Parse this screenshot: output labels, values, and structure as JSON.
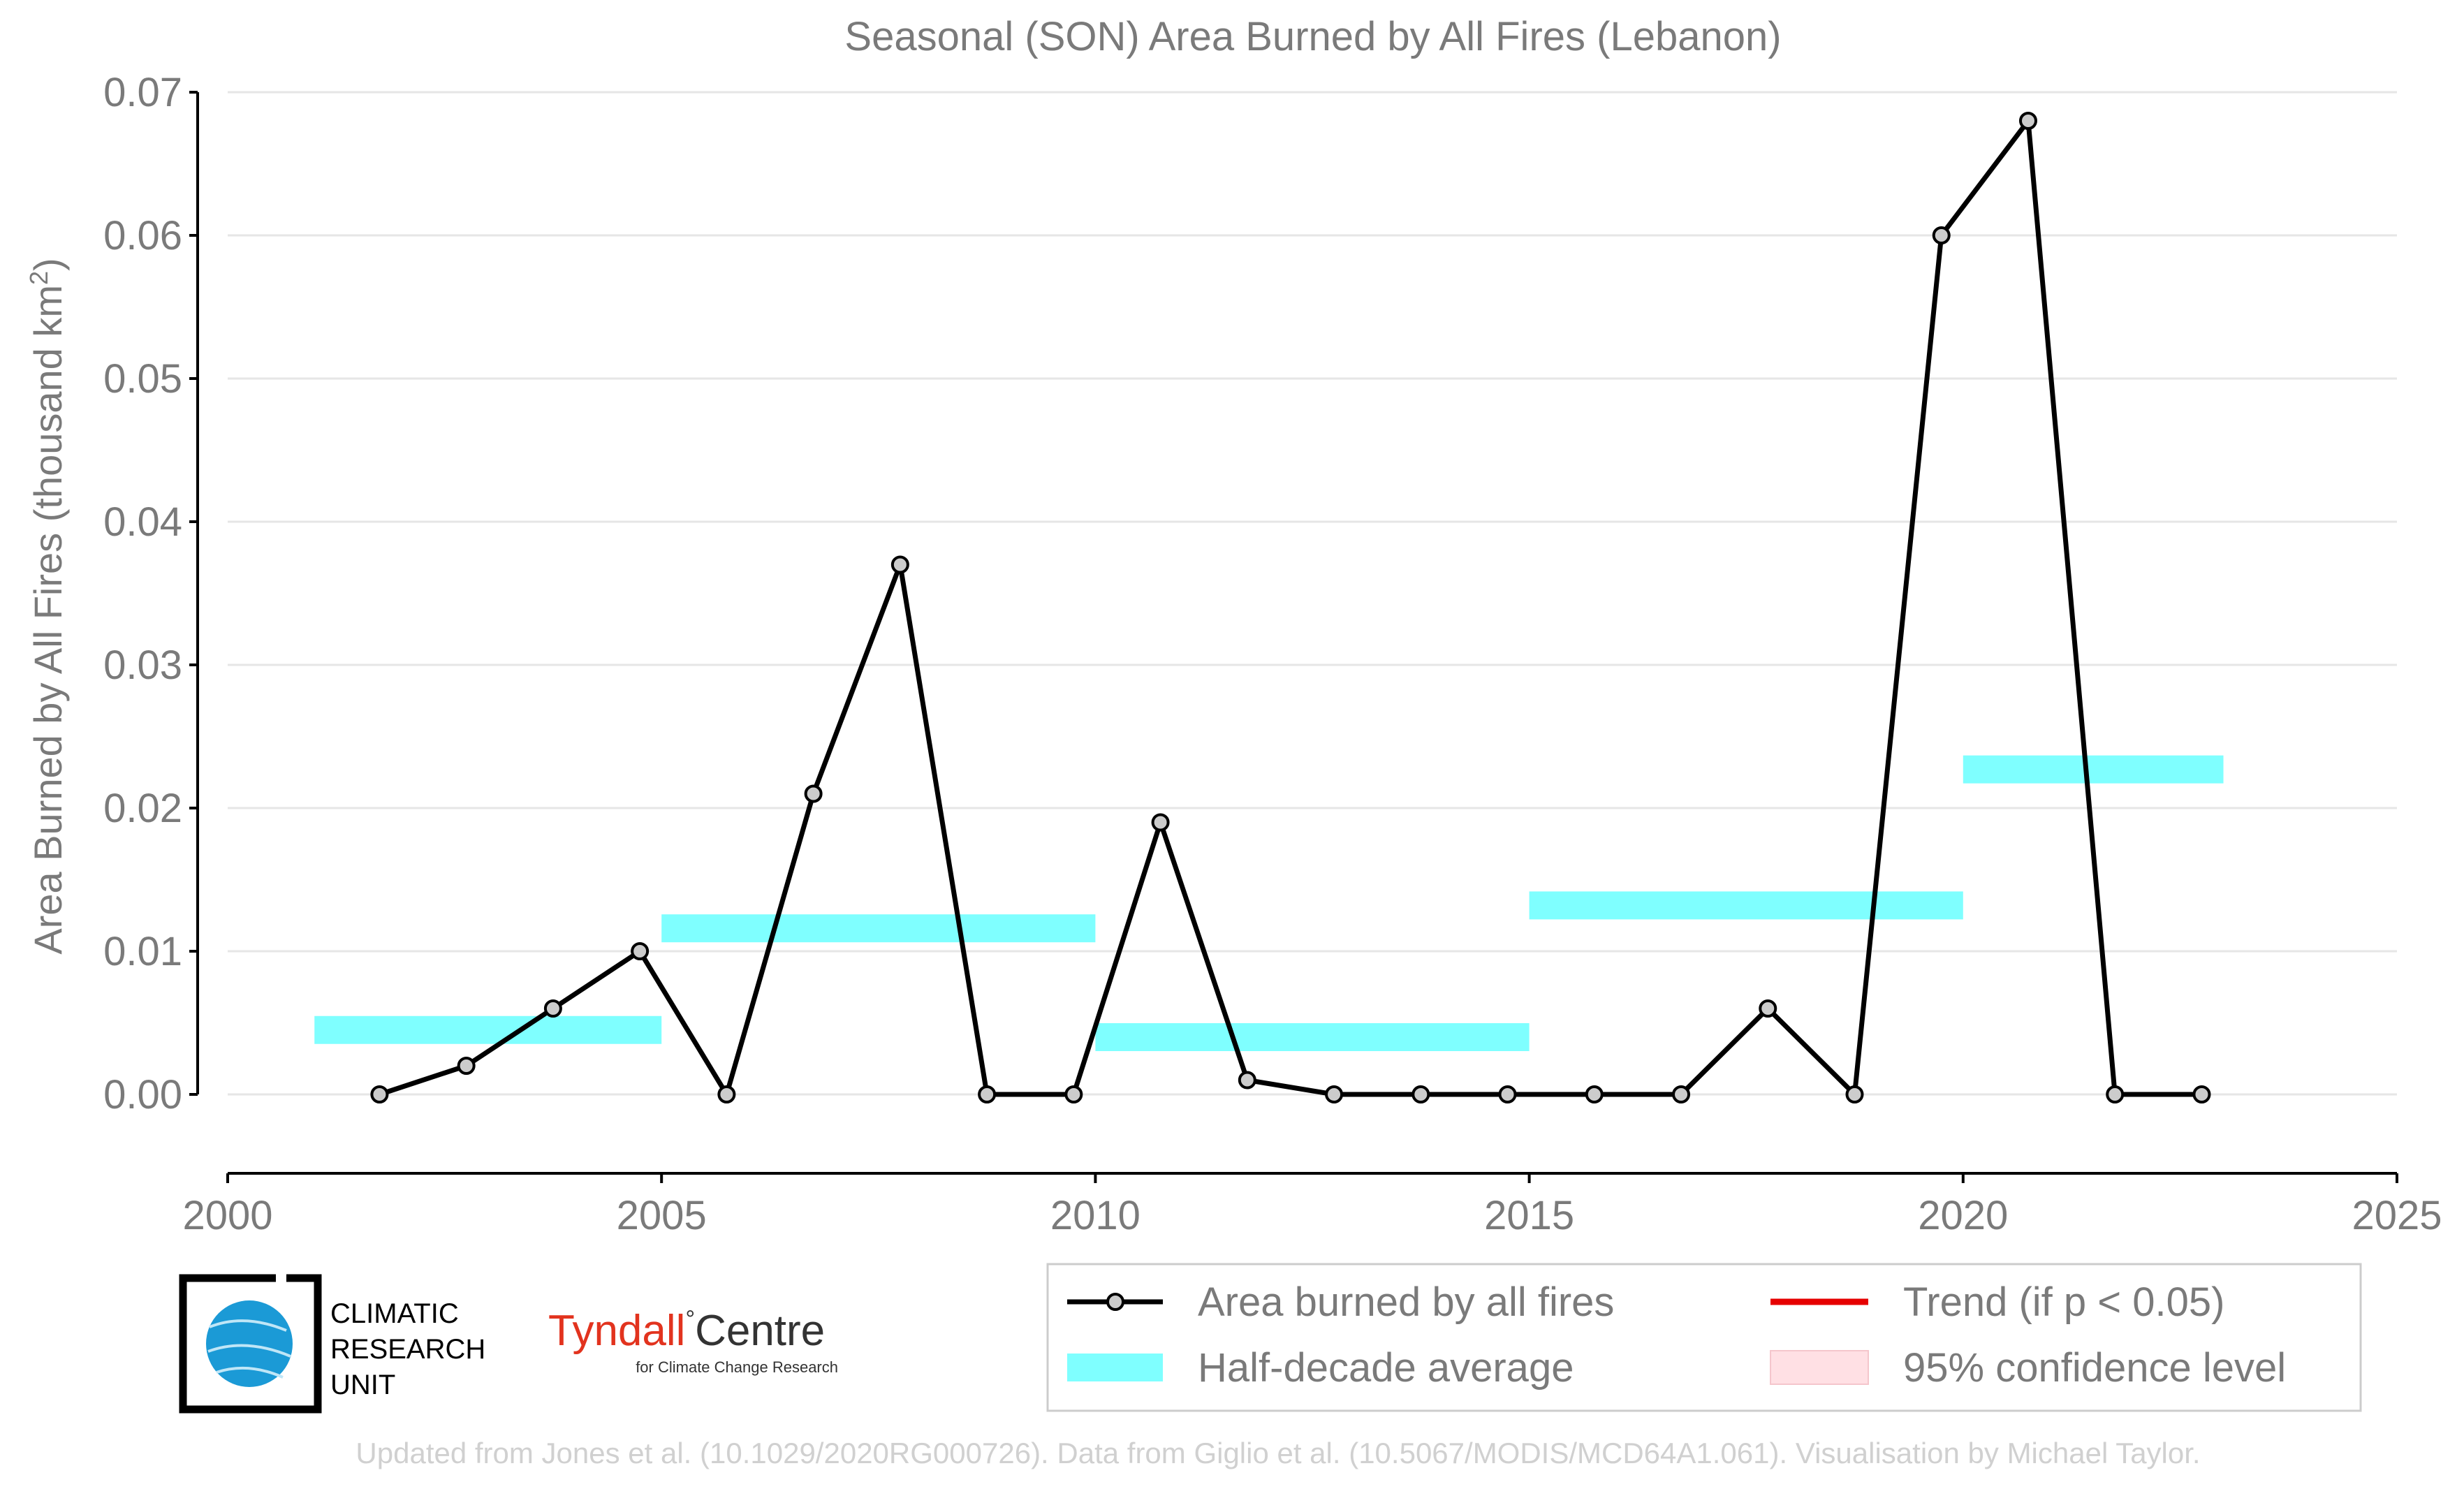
{
  "chart_data": {
    "type": "line",
    "title": "Seasonal (SON) Area Burned by All Fires (Lebanon)",
    "ylabel_main": "Area Burned by All Fires (thousand km",
    "ylabel_sup": "2",
    "ylabel_end": ")",
    "xlabel": "",
    "xlim": [
      2000,
      2025
    ],
    "ylim": [
      -0.0055,
      0.07
    ],
    "x_ticks": [
      "2000",
      "2005",
      "2010",
      "2015",
      "2020",
      "2025"
    ],
    "x_tick_values": [
      2000,
      2005,
      2010,
      2015,
      2020,
      2025
    ],
    "y_ticks": [
      "0.00",
      "0.01",
      "0.02",
      "0.03",
      "0.04",
      "0.05",
      "0.06",
      "0.07"
    ],
    "y_tick_values": [
      0,
      0.01,
      0.02,
      0.03,
      0.04,
      0.05,
      0.06,
      0.07
    ],
    "grid": "horizontal",
    "legend_position": "bottom-right",
    "series": [
      {
        "name": "Area burned by all fires",
        "type": "line",
        "color": "#000000",
        "marker_fill": "#cccccc",
        "x": [
          2001.75,
          2002.75,
          2003.75,
          2004.75,
          2005.75,
          2006.75,
          2007.75,
          2008.75,
          2009.75,
          2010.75,
          2011.75,
          2012.75,
          2013.75,
          2014.75,
          2015.75,
          2016.75,
          2017.75,
          2018.75,
          2019.75,
          2020.75,
          2021.75,
          2022.75
        ],
        "values": [
          0.0,
          0.002,
          0.006,
          0.01,
          0.0,
          0.021,
          0.037,
          0.0,
          0.0,
          0.019,
          0.001,
          0.0,
          0.0,
          0.0,
          0.0,
          0.0,
          0.006,
          0.0,
          0.06,
          0.068,
          0.0,
          0.0
        ]
      },
      {
        "name": "Half-decade average",
        "type": "step",
        "color": "#7fffff",
        "segments": [
          {
            "x0": 2001,
            "x1": 2005,
            "value": 0.0045
          },
          {
            "x0": 2005,
            "x1": 2010,
            "value": 0.0116
          },
          {
            "x0": 2010,
            "x1": 2015,
            "value": 0.004
          },
          {
            "x0": 2015,
            "x1": 2020,
            "value": 0.0132
          },
          {
            "x0": 2020,
            "x1": 2023,
            "value": 0.0227
          }
        ]
      }
    ],
    "legend": [
      {
        "label": "Area burned by all fires",
        "kind": "line-marker",
        "color": "#000000"
      },
      {
        "label": "Trend (if p < 0.05)",
        "kind": "line",
        "color": "#e60000"
      },
      {
        "label": "Half-decade average",
        "kind": "band",
        "color": "#7fffff"
      },
      {
        "label": "95% confidence level",
        "kind": "patch",
        "color": "#ffe0e4"
      }
    ]
  },
  "logos": {
    "cru": {
      "line1": "CLIMATIC",
      "line2": "RESEARCH",
      "line3": "UNIT"
    },
    "tyndall": {
      "name_left": "Tyndall",
      "degree": "°",
      "name_right": "Centre",
      "tagline": "for Climate Change Research"
    }
  },
  "footer": {
    "credit": "Updated from Jones et al. (10.1029/2020RG000726). Data from Giglio et al. (10.5067/MODIS/MCD64A1.061). Visualisation by Michael Taylor."
  },
  "colors": {
    "text_gray": "#7a7a7a",
    "footer_gray": "#d0d0d0",
    "grid": "#e6e6e6",
    "tyndall_red": "#e2331e",
    "cru_blue": "#1b9ad6"
  }
}
